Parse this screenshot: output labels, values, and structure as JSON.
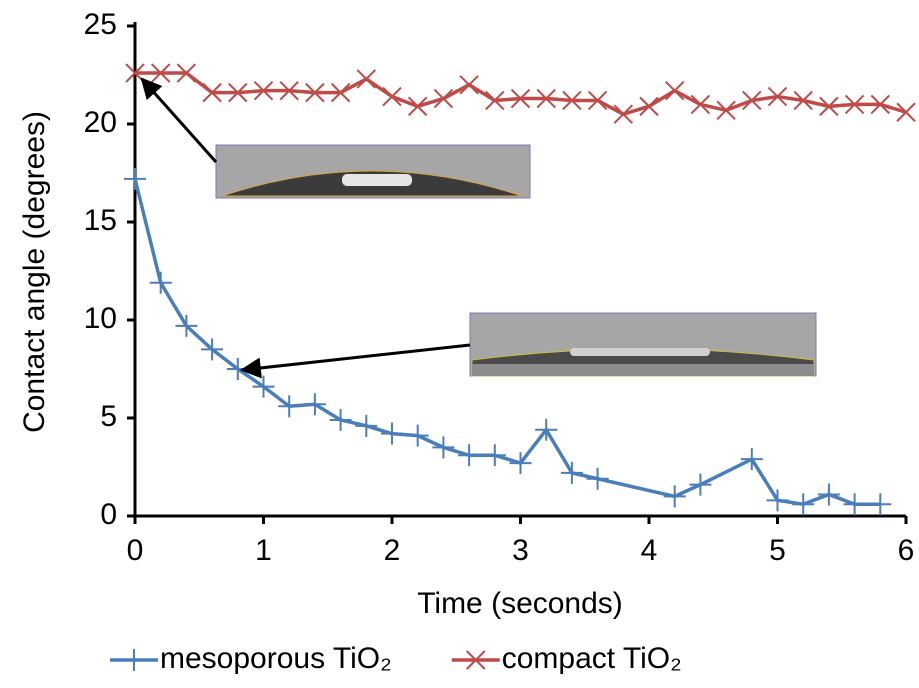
{
  "chart_data": {
    "type": "line",
    "xlabel": "Time (seconds)",
    "ylabel": "Contact angle (degrees)",
    "xlim": [
      0,
      6
    ],
    "xticks": [
      0,
      1,
      2,
      3,
      4,
      5,
      6
    ],
    "ylim": [
      0,
      25
    ],
    "yticks": [
      0,
      5,
      10,
      15,
      20,
      25
    ],
    "series": [
      {
        "name": "mesoporous TiO₂",
        "color": "#4a7ebb",
        "marker": "plus",
        "x": [
          0,
          0.2,
          0.4,
          0.6,
          0.8,
          1.0,
          1.2,
          1.4,
          1.6,
          1.8,
          2.0,
          2.2,
          2.4,
          2.6,
          2.8,
          3.0,
          3.2,
          3.4,
          3.6,
          4.2,
          4.4,
          4.8,
          5.0,
          5.2,
          5.4,
          5.6,
          5.8
        ],
        "values": [
          17.2,
          11.9,
          9.7,
          8.5,
          7.5,
          6.6,
          5.6,
          5.7,
          4.9,
          4.6,
          4.2,
          4.1,
          3.5,
          3.1,
          3.1,
          2.7,
          4.4,
          2.2,
          1.9,
          1.0,
          1.6,
          2.9,
          0.8,
          0.6,
          1.1,
          0.6,
          0.6
        ]
      },
      {
        "name": "compact TiO₂",
        "color": "#be4b48",
        "marker": "cross",
        "x": [
          0,
          0.2,
          0.4,
          0.6,
          0.8,
          1.0,
          1.2,
          1.4,
          1.6,
          1.8,
          2.0,
          2.2,
          2.4,
          2.6,
          2.8,
          3.0,
          3.2,
          3.4,
          3.6,
          3.8,
          4.0,
          4.2,
          4.4,
          4.6,
          4.8,
          5.0,
          5.2,
          5.4,
          5.6,
          5.8,
          6.0
        ],
        "values": [
          22.6,
          22.6,
          22.6,
          21.6,
          21.6,
          21.7,
          21.7,
          21.6,
          21.6,
          22.3,
          21.4,
          20.9,
          21.3,
          22.0,
          21.2,
          21.3,
          21.3,
          21.2,
          21.2,
          20.5,
          20.9,
          21.7,
          21.0,
          20.7,
          21.2,
          21.4,
          21.2,
          20.9,
          21.0,
          21.0,
          20.6
        ]
      }
    ],
    "legend": "bottom"
  }
}
